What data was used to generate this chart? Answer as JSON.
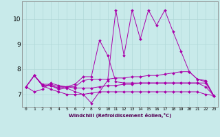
{
  "xlabel": "Windchill (Refroidissement éolien,°C)",
  "x_ticks": [
    0,
    1,
    2,
    3,
    4,
    5,
    6,
    7,
    8,
    9,
    10,
    11,
    12,
    13,
    14,
    15,
    16,
    17,
    18,
    19,
    20,
    21,
    22,
    23
  ],
  "ylim": [
    6.5,
    10.7
  ],
  "yticks": [
    7,
    8,
    9,
    10
  ],
  "background_color": "#c8eaea",
  "grid_color": "#b0d8d8",
  "line_color": "#aa00aa",
  "lines": [
    [
      7.3,
      7.75,
      7.35,
      7.35,
      7.2,
      7.25,
      7.1,
      7.0,
      6.65,
      7.1,
      7.55,
      10.35,
      8.55,
      10.35,
      9.2,
      10.35,
      9.75,
      10.35,
      9.5,
      8.7,
      7.9,
      7.6,
      7.55,
      6.95
    ],
    [
      7.3,
      7.75,
      7.35,
      7.35,
      7.25,
      7.3,
      7.3,
      7.55,
      7.6,
      7.6,
      7.6,
      7.65,
      7.65,
      7.7,
      7.7,
      7.75,
      7.75,
      7.8,
      7.85,
      7.9,
      7.9,
      7.6,
      7.5,
      6.95
    ],
    [
      7.3,
      7.75,
      7.4,
      7.4,
      7.3,
      7.3,
      7.25,
      7.25,
      7.25,
      7.3,
      7.35,
      7.35,
      7.4,
      7.4,
      7.45,
      7.45,
      7.45,
      7.45,
      7.45,
      7.45,
      7.45,
      7.45,
      7.45,
      6.95
    ],
    [
      7.3,
      7.1,
      7.2,
      7.45,
      7.35,
      7.3,
      7.4,
      7.7,
      7.7,
      9.15,
      8.55,
      7.5,
      7.45,
      7.45,
      7.45,
      7.45,
      7.45,
      7.45,
      7.45,
      7.45,
      7.45,
      7.45,
      7.3,
      6.95
    ],
    [
      7.3,
      7.75,
      7.35,
      7.2,
      7.1,
      7.0,
      7.0,
      7.0,
      7.05,
      7.1,
      7.1,
      7.1,
      7.1,
      7.1,
      7.1,
      7.1,
      7.1,
      7.1,
      7.1,
      7.1,
      7.1,
      7.1,
      7.0,
      6.95
    ]
  ],
  "figsize": [
    3.2,
    2.0
  ],
  "dpi": 100
}
